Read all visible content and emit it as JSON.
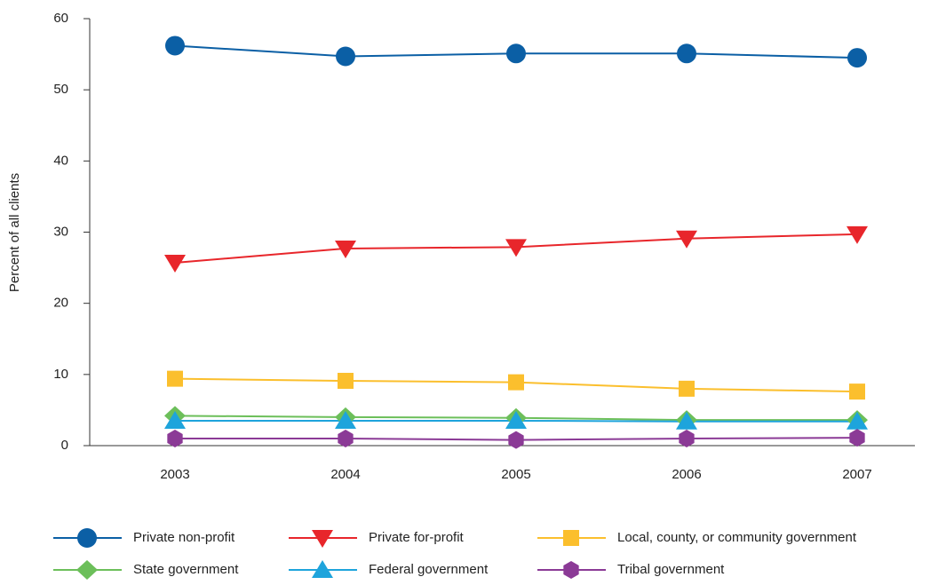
{
  "chart_data": {
    "type": "line",
    "y_label": "Percent of all clients",
    "categories": [
      "2003",
      "2004",
      "2005",
      "2006",
      "2007"
    ],
    "ylim": [
      0,
      60
    ],
    "yticks": [
      0,
      10,
      20,
      30,
      40,
      50,
      60
    ],
    "grid": false,
    "legend": "bottom",
    "series": [
      {
        "name": "Private non-profit",
        "color": "#0b5fa5",
        "marker": "circle",
        "values": [
          56.2,
          54.7,
          55.1,
          55.1,
          54.5
        ]
      },
      {
        "name": "Private for-profit",
        "color": "#e8262b",
        "marker": "triangle-down",
        "values": [
          25.7,
          27.7,
          27.9,
          29.1,
          29.7
        ]
      },
      {
        "name": "Local, county, or community government",
        "color": "#fbbf2d",
        "marker": "square",
        "values": [
          9.4,
          9.1,
          8.9,
          8.0,
          7.6
        ]
      },
      {
        "name": "State government",
        "color": "#6cbf5a",
        "marker": "diamond",
        "values": [
          4.2,
          4.0,
          3.9,
          3.6,
          3.6
        ]
      },
      {
        "name": "Federal government",
        "color": "#1ea4dc",
        "marker": "triangle-up",
        "values": [
          3.5,
          3.5,
          3.5,
          3.4,
          3.4
        ]
      },
      {
        "name": "Tribal government",
        "color": "#8b3a96",
        "marker": "hexagon",
        "values": [
          1.0,
          1.0,
          0.8,
          1.0,
          1.1
        ]
      }
    ]
  }
}
